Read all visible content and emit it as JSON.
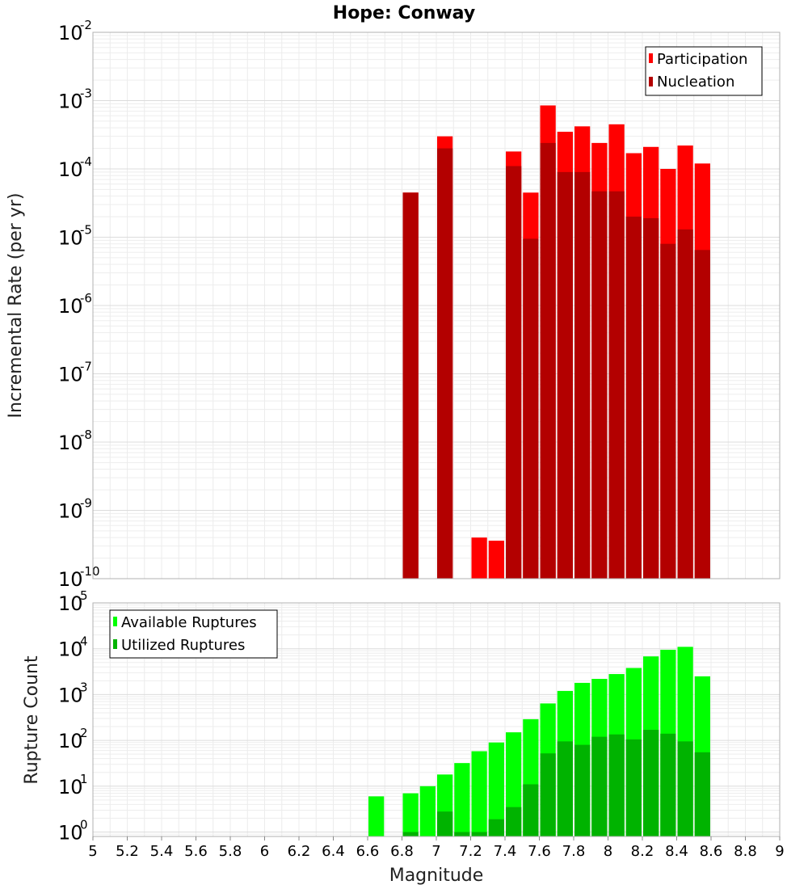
{
  "chart_data": [
    {
      "type": "bar",
      "title": "Hope: Conway",
      "ylabel": "Incremental Rate (per yr)",
      "xlabel": "",
      "yscale": "log",
      "xlim": [
        5,
        9
      ],
      "ylim": [
        1e-10,
        0.01
      ],
      "grid": true,
      "legend_position": "top-right",
      "bar_width": 0.1,
      "x": [
        6.85,
        7.05,
        7.25,
        7.35,
        7.45,
        7.55,
        7.65,
        7.75,
        7.85,
        7.95,
        8.05,
        8.15,
        8.25,
        8.35,
        8.45,
        8.55
      ],
      "y_ticks": [
        {
          "base": "10",
          "exp": "-10"
        },
        {
          "base": "10",
          "exp": "-9"
        },
        {
          "base": "10",
          "exp": "-8"
        },
        {
          "base": "10",
          "exp": "-7"
        },
        {
          "base": "10",
          "exp": "-6"
        },
        {
          "base": "10",
          "exp": "-5"
        },
        {
          "base": "10",
          "exp": "-4"
        },
        {
          "base": "10",
          "exp": "-3"
        },
        {
          "base": "10",
          "exp": "-2"
        }
      ],
      "series": [
        {
          "name": "Participation",
          "color": "#ff0000",
          "values": [
            4.5e-05,
            0.0003,
            4e-10,
            3.6e-10,
            0.00018,
            4.5e-05,
            0.00085,
            0.00035,
            0.00042,
            0.00024,
            0.00045,
            0.00017,
            0.00021,
            0.0001,
            0.00022,
            0.00012
          ]
        },
        {
          "name": "Nucleation",
          "color": "#b30000",
          "values": [
            4.5e-05,
            0.0002,
            null,
            null,
            0.00011,
            9.5e-06,
            0.00024,
            9e-05,
            9e-05,
            4.7e-05,
            4.7e-05,
            2e-05,
            1.9e-05,
            8e-06,
            1.3e-05,
            6.5e-06
          ]
        }
      ]
    },
    {
      "type": "bar",
      "title": "",
      "ylabel": "Rupture Count",
      "xlabel": "Magnitude",
      "yscale": "log",
      "xlim": [
        5,
        9
      ],
      "ylim": [
        0.8,
        100000.0
      ],
      "grid": true,
      "legend_position": "top-left",
      "bar_width": 0.1,
      "x": [
        6.65,
        6.85,
        6.95,
        7.05,
        7.15,
        7.25,
        7.35,
        7.45,
        7.55,
        7.65,
        7.75,
        7.85,
        7.95,
        8.05,
        8.15,
        8.25,
        8.35,
        8.45,
        8.55
      ],
      "x_tick_labels": [
        "5",
        "5.2",
        "5.4",
        "5.6",
        "5.8",
        "6",
        "6.2",
        "6.4",
        "6.6",
        "6.8",
        "7",
        "7.2",
        "7.4",
        "7.6",
        "7.8",
        "8",
        "8.2",
        "8.4",
        "8.6",
        "8.8",
        "9"
      ],
      "y_ticks": [
        {
          "base": "10",
          "exp": "0"
        },
        {
          "base": "10",
          "exp": "1"
        },
        {
          "base": "10",
          "exp": "2"
        },
        {
          "base": "10",
          "exp": "3"
        },
        {
          "base": "10",
          "exp": "4"
        },
        {
          "base": "10",
          "exp": "5"
        }
      ],
      "series": [
        {
          "name": "Available Ruptures",
          "color": "#00ff00",
          "values": [
            6,
            7,
            10,
            18,
            32,
            58,
            90,
            150,
            290,
            640,
            1200,
            1800,
            2200,
            2800,
            3800,
            6800,
            9500,
            11000,
            2500
          ]
        },
        {
          "name": "Utilized Ruptures",
          "color": "#00b300",
          "values": [
            null,
            1,
            null,
            2.8,
            1,
            1,
            1.9,
            3.5,
            11,
            52,
            95,
            80,
            120,
            135,
            105,
            170,
            140,
            95,
            55
          ]
        }
      ]
    }
  ]
}
